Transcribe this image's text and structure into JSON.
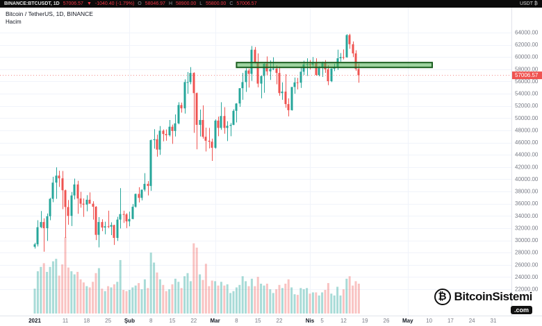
{
  "top_bar": {
    "symbol": "BINANCE:BTCUSDT, 1D",
    "last_price": "57006.57",
    "direction": "▼",
    "change": "-1040.40 (-1.79%)",
    "ohlc": [
      {
        "label": "O",
        "value": "58046.97"
      },
      {
        "label": "H",
        "value": "58900.00"
      },
      {
        "label": "L",
        "value": "55800.00"
      },
      {
        "label": "C",
        "value": "57006.57"
      }
    ],
    "right_label": "USDT ₿"
  },
  "legend": {
    "title": "Bitcoin / TetherUS, 1D, BINANCE",
    "indicator": "Hacim"
  },
  "watermark": {
    "icon": "₿",
    "name": "BitcoinSistemi",
    "tld": ".com"
  },
  "price_axis": {
    "labels": [
      "64000.00",
      "62000.00",
      "60000.00",
      "58000.00",
      "56000.00",
      "54000.00",
      "52000.00",
      "50000.00",
      "48000.00",
      "46000.00",
      "44000.00",
      "42000.00",
      "40000.00",
      "38000.00",
      "36000.00",
      "34000.00",
      "32000.00",
      "30000.00",
      "28000.00",
      "26000.00",
      "24000.00",
      "22000.00"
    ],
    "current_price": "57006.57"
  },
  "time_axis": {
    "ticks": [
      {
        "label": "2021",
        "day": 0,
        "bold": true
      },
      {
        "label": "11",
        "day": 10
      },
      {
        "label": "18",
        "day": 17
      },
      {
        "label": "25",
        "day": 24
      },
      {
        "label": "Şub",
        "day": 31,
        "bold": true
      },
      {
        "label": "8",
        "day": 38
      },
      {
        "label": "15",
        "day": 45
      },
      {
        "label": "22",
        "day": 52
      },
      {
        "label": "Mar",
        "day": 59,
        "bold": true
      },
      {
        "label": "8",
        "day": 66
      },
      {
        "label": "15",
        "day": 73
      },
      {
        "label": "22",
        "day": 80
      },
      {
        "label": "Nis",
        "day": 90,
        "bold": true
      },
      {
        "label": "5",
        "day": 94
      },
      {
        "label": "12",
        "day": 101
      },
      {
        "label": "19",
        "day": 108
      },
      {
        "label": "26",
        "day": 115
      },
      {
        "label": "May",
        "day": 122,
        "bold": true
      },
      {
        "label": "10",
        "day": 129
      },
      {
        "label": "17",
        "day": 136
      },
      {
        "label": "24",
        "day": 143
      },
      {
        "label": "31",
        "day": 150
      }
    ]
  },
  "chart_data": {
    "type": "candlestick+volume",
    "title": "Bitcoin / TetherUS, 1D, BINANCE",
    "interval": "1D",
    "start_label": "2021",
    "price_range_labeled": [
      22000,
      64000
    ],
    "colors": {
      "up": "#26a69a",
      "down": "#ef5350",
      "vol_up": "rgba(38,166,154,0.40)",
      "vol_down": "rgba(239,83,80,0.35)",
      "grid": "#f0f3fa",
      "axis_text": "#787b86",
      "zone_fill": "rgba(76,175,80,0.55)",
      "zone_border": "#1b5e20",
      "tag_bg": "#ef5350"
    },
    "resistance_zone": {
      "price_top": 59100,
      "price_bottom": 58300,
      "start_index": 66,
      "end_index": 130
    },
    "candles": [
      [
        28950,
        29600,
        28650,
        29350,
        40
      ],
      [
        29350,
        33300,
        29000,
        32150,
        68
      ],
      [
        32150,
        34800,
        32000,
        33000,
        75
      ],
      [
        33000,
        33600,
        28150,
        31990,
        81
      ],
      [
        31990,
        34400,
        29900,
        33950,
        67
      ],
      [
        33950,
        36950,
        33300,
        36800,
        75
      ],
      [
        36800,
        40400,
        36250,
        39450,
        84
      ],
      [
        39450,
        41950,
        36800,
        40600,
        88
      ],
      [
        40600,
        41400,
        38750,
        40150,
        61
      ],
      [
        40150,
        41350,
        35100,
        38200,
        79
      ],
      [
        38200,
        38300,
        30400,
        35450,
        123
      ],
      [
        35450,
        36600,
        32550,
        34000,
        74
      ],
      [
        34000,
        37900,
        32350,
        37350,
        68
      ],
      [
        37350,
        40100,
        36700,
        39150,
        63
      ],
      [
        39150,
        39750,
        34350,
        36850,
        67
      ],
      [
        36850,
        37950,
        35350,
        36000,
        55
      ],
      [
        36000,
        36850,
        33850,
        35850,
        50
      ],
      [
        35850,
        37400,
        34750,
        36650,
        44
      ],
      [
        36650,
        37850,
        36000,
        36000,
        42
      ],
      [
        36000,
        36400,
        33400,
        35500,
        51
      ],
      [
        35500,
        35600,
        30050,
        30900,
        65
      ],
      [
        30900,
        33800,
        28850,
        33000,
        73
      ],
      [
        33000,
        33450,
        31500,
        32100,
        40
      ],
      [
        32100,
        33050,
        31000,
        32300,
        36
      ],
      [
        32300,
        34850,
        32000,
        32250,
        44
      ],
      [
        32250,
        32950,
        30850,
        32500,
        42
      ],
      [
        32500,
        32550,
        29250,
        30400,
        47
      ],
      [
        30400,
        33850,
        29900,
        33400,
        51
      ],
      [
        33400,
        38550,
        31950,
        34300,
        86
      ],
      [
        34300,
        34850,
        32850,
        34250,
        38
      ],
      [
        34250,
        34450,
        32000,
        33100,
        36
      ],
      [
        33100,
        34700,
        32300,
        33500,
        38
      ],
      [
        33500,
        35950,
        33450,
        35500,
        42
      ],
      [
        35500,
        37650,
        35350,
        37600,
        45
      ],
      [
        37600,
        38700,
        36200,
        36950,
        49
      ],
      [
        36950,
        38300,
        36550,
        38300,
        39
      ],
      [
        38300,
        41000,
        38000,
        39250,
        55
      ],
      [
        39250,
        39700,
        37350,
        38900,
        41
      ],
      [
        38900,
        46500,
        38100,
        46400,
        98
      ],
      [
        46400,
        48200,
        45000,
        46550,
        82
      ],
      [
        46550,
        47300,
        43700,
        44850,
        66
      ],
      [
        44850,
        48700,
        44000,
        47950,
        55
      ],
      [
        47950,
        48150,
        46200,
        47400,
        46
      ],
      [
        47400,
        48150,
        46300,
        47200,
        36
      ],
      [
        47200,
        49700,
        47000,
        48600,
        39
      ],
      [
        48600,
        48950,
        45800,
        47900,
        47
      ],
      [
        47900,
        50600,
        47000,
        49150,
        56
      ],
      [
        49150,
        52600,
        49000,
        52150,
        51
      ],
      [
        52150,
        52550,
        50900,
        51600,
        41
      ],
      [
        51600,
        56350,
        50750,
        55900,
        60
      ],
      [
        55900,
        57550,
        54000,
        55900,
        65
      ],
      [
        55900,
        58350,
        55550,
        57400,
        52
      ],
      [
        57400,
        57500,
        47600,
        54100,
        113
      ],
      [
        54100,
        54200,
        44900,
        48900,
        106
      ],
      [
        48900,
        51400,
        47000,
        49700,
        63
      ],
      [
        49700,
        52100,
        46650,
        46950,
        54
      ],
      [
        46950,
        48450,
        44550,
        46300,
        80
      ],
      [
        46300,
        48400,
        45050,
        46150,
        44
      ],
      [
        46150,
        46650,
        43000,
        45150,
        53
      ],
      [
        45150,
        49800,
        45000,
        49600,
        52
      ],
      [
        49600,
        50250,
        47050,
        48400,
        45
      ],
      [
        48400,
        52600,
        48100,
        50350,
        51
      ],
      [
        50350,
        51800,
        47450,
        48400,
        45
      ],
      [
        48400,
        49500,
        46250,
        48750,
        47
      ],
      [
        48750,
        49200,
        47050,
        48900,
        33
      ],
      [
        48900,
        51450,
        48850,
        51200,
        36
      ],
      [
        51200,
        52450,
        49300,
        52400,
        42
      ],
      [
        52400,
        54900,
        51850,
        54900,
        46
      ],
      [
        54900,
        57400,
        53000,
        55900,
        60
      ],
      [
        55900,
        58150,
        54300,
        57800,
        52
      ],
      [
        57800,
        58100,
        55000,
        57250,
        44
      ],
      [
        57250,
        61800,
        56100,
        61200,
        56
      ],
      [
        61200,
        61650,
        58950,
        59000,
        44
      ],
      [
        59000,
        60600,
        55050,
        55650,
        59
      ],
      [
        55650,
        56950,
        53250,
        56900,
        48
      ],
      [
        56900,
        58950,
        54150,
        58900,
        45
      ],
      [
        58900,
        60100,
        57050,
        57650,
        48
      ],
      [
        57650,
        59450,
        56250,
        58050,
        39
      ],
      [
        58050,
        59950,
        57850,
        58100,
        33
      ],
      [
        58100,
        58650,
        55550,
        57400,
        39
      ],
      [
        57400,
        58450,
        53650,
        54100,
        46
      ],
      [
        54100,
        55850,
        53000,
        54350,
        41
      ],
      [
        54350,
        57200,
        51700,
        52300,
        48
      ],
      [
        52300,
        53250,
        50300,
        51300,
        55
      ],
      [
        51300,
        55100,
        51250,
        55100,
        42
      ],
      [
        55100,
        56650,
        54000,
        55850,
        31
      ],
      [
        55850,
        56600,
        54700,
        55800,
        30
      ],
      [
        55800,
        58400,
        54950,
        57600,
        41
      ],
      [
        57600,
        59400,
        57050,
        58800,
        39
      ],
      [
        58800,
        59800,
        56900,
        58800,
        41
      ],
      [
        58800,
        59500,
        57950,
        58750,
        32
      ],
      [
        58750,
        60000,
        58450,
        59050,
        34
      ],
      [
        59050,
        59800,
        56950,
        57050,
        34
      ],
      [
        57050,
        58500,
        56850,
        58200,
        29
      ],
      [
        58200,
        59250,
        56750,
        59150,
        34
      ],
      [
        59150,
        59500,
        57400,
        58000,
        38
      ],
      [
        58000,
        58650,
        55400,
        56050,
        49
      ],
      [
        56050,
        58150,
        55900,
        58100,
        32
      ],
      [
        58100,
        58900,
        57700,
        58350,
        29
      ],
      [
        58350,
        61200,
        57900,
        59800,
        43
      ],
      [
        59800,
        60650,
        59250,
        60000,
        29
      ],
      [
        60000,
        61250,
        59600,
        59950,
        39
      ],
      [
        59950,
        63750,
        59900,
        63600,
        56
      ],
      [
        63600,
        63800,
        61350,
        62100,
        60
      ],
      [
        62100,
        62550,
        60000,
        60600,
        45
      ],
      [
        60600,
        61100,
        57750,
        58046.97,
        52
      ],
      [
        58046.97,
        58900,
        55800,
        57006.57,
        48
      ]
    ]
  }
}
